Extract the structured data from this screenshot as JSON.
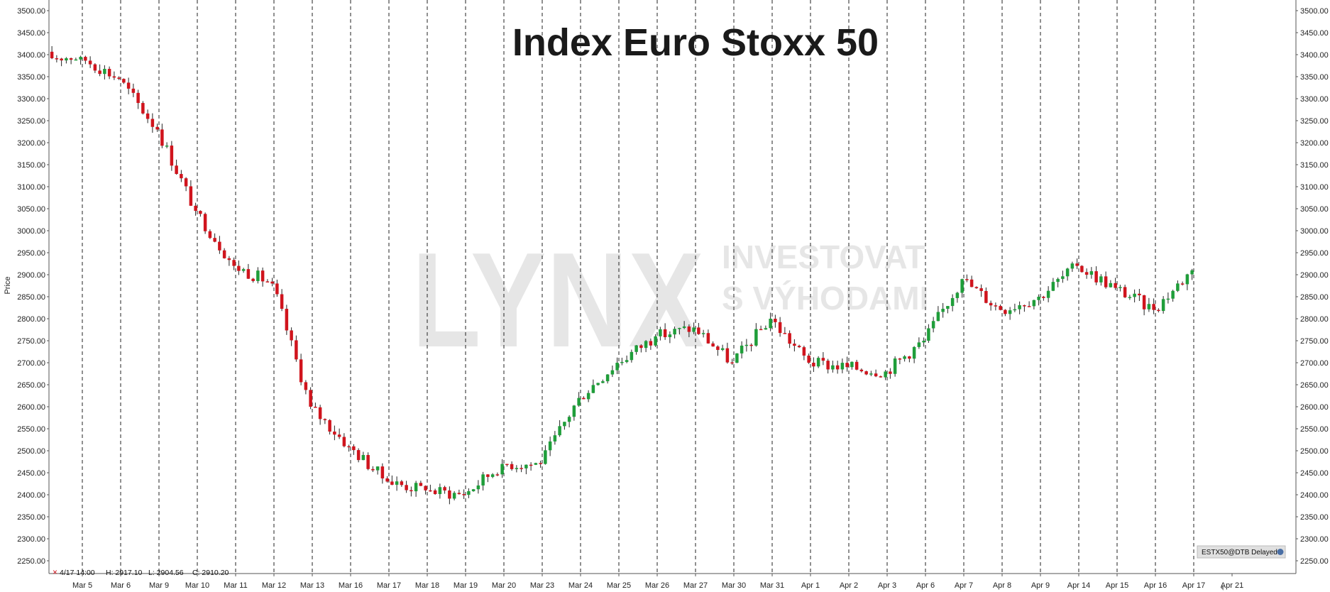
{
  "chart_data": {
    "type": "candlestick",
    "title": "Index Euro Stoxx 50",
    "ylabel": "Price",
    "ylim": [
      2225,
      3500
    ],
    "y_ticks": [
      2250,
      2300,
      2350,
      2400,
      2450,
      2500,
      2550,
      2600,
      2650,
      2700,
      2750,
      2800,
      2850,
      2900,
      2950,
      3000,
      3050,
      3100,
      3150,
      3200,
      3250,
      3300,
      3350,
      3400,
      3450,
      3500
    ],
    "y_tick_labels": [
      "2250.00",
      "2300.00",
      "2350.00",
      "2400.00",
      "2450.00",
      "2500.00",
      "2550.00",
      "2600.00",
      "2650.00",
      "2700.00",
      "2750.00",
      "2800.00",
      "2850.00",
      "2900.00",
      "2950.00",
      "3000.00",
      "3050.00",
      "3100.00",
      "3150.00",
      "3200.00",
      "3250.00",
      "3300.00",
      "3350.00",
      "3400.00",
      "3450.00",
      "3500.00"
    ],
    "days": [
      "Mar 5",
      "Mar 6",
      "Mar 9",
      "Mar 10",
      "Mar 11",
      "Mar 12",
      "Mar 13",
      "Mar 16",
      "Mar 17",
      "Mar 18",
      "Mar 19",
      "Mar 20",
      "Mar 23",
      "Mar 24",
      "Mar 25",
      "Mar 26",
      "Mar 27",
      "Mar 30",
      "Mar 31",
      "Apr 1",
      "Apr 2",
      "Apr 3",
      "Apr 6",
      "Apr 7",
      "Apr 8",
      "Apr 9",
      "Apr 14",
      "Apr 15",
      "Apr 16",
      "Apr 17",
      "Apr 21"
    ],
    "day_closes": [
      3395,
      3345,
      3230,
      3045,
      2920,
      2880,
      2600,
      2510,
      2430,
      2410,
      2400,
      2470,
      2470,
      2620,
      2700,
      2760,
      2780,
      2700,
      2800,
      2700,
      2690,
      2680,
      2750,
      2890,
      2820,
      2850,
      2920,
      2870,
      2820,
      2910
    ],
    "up_color": "#1f9e3a",
    "down_color": "#d0141d",
    "grid": "vertical dashed day separators",
    "info_bar": {
      "marker": "×",
      "time": "4/17 14:00",
      "high": "H: 2917.10",
      "low": "L: 2904.56",
      "close": "C: 2910.20"
    },
    "symbol_badge": "ESTX50@DTB Delayed"
  },
  "watermark": {
    "brand": "LYNX",
    "tagline_1": "INVESTOVAT",
    "tagline_2": "S VÝHODAMI"
  }
}
